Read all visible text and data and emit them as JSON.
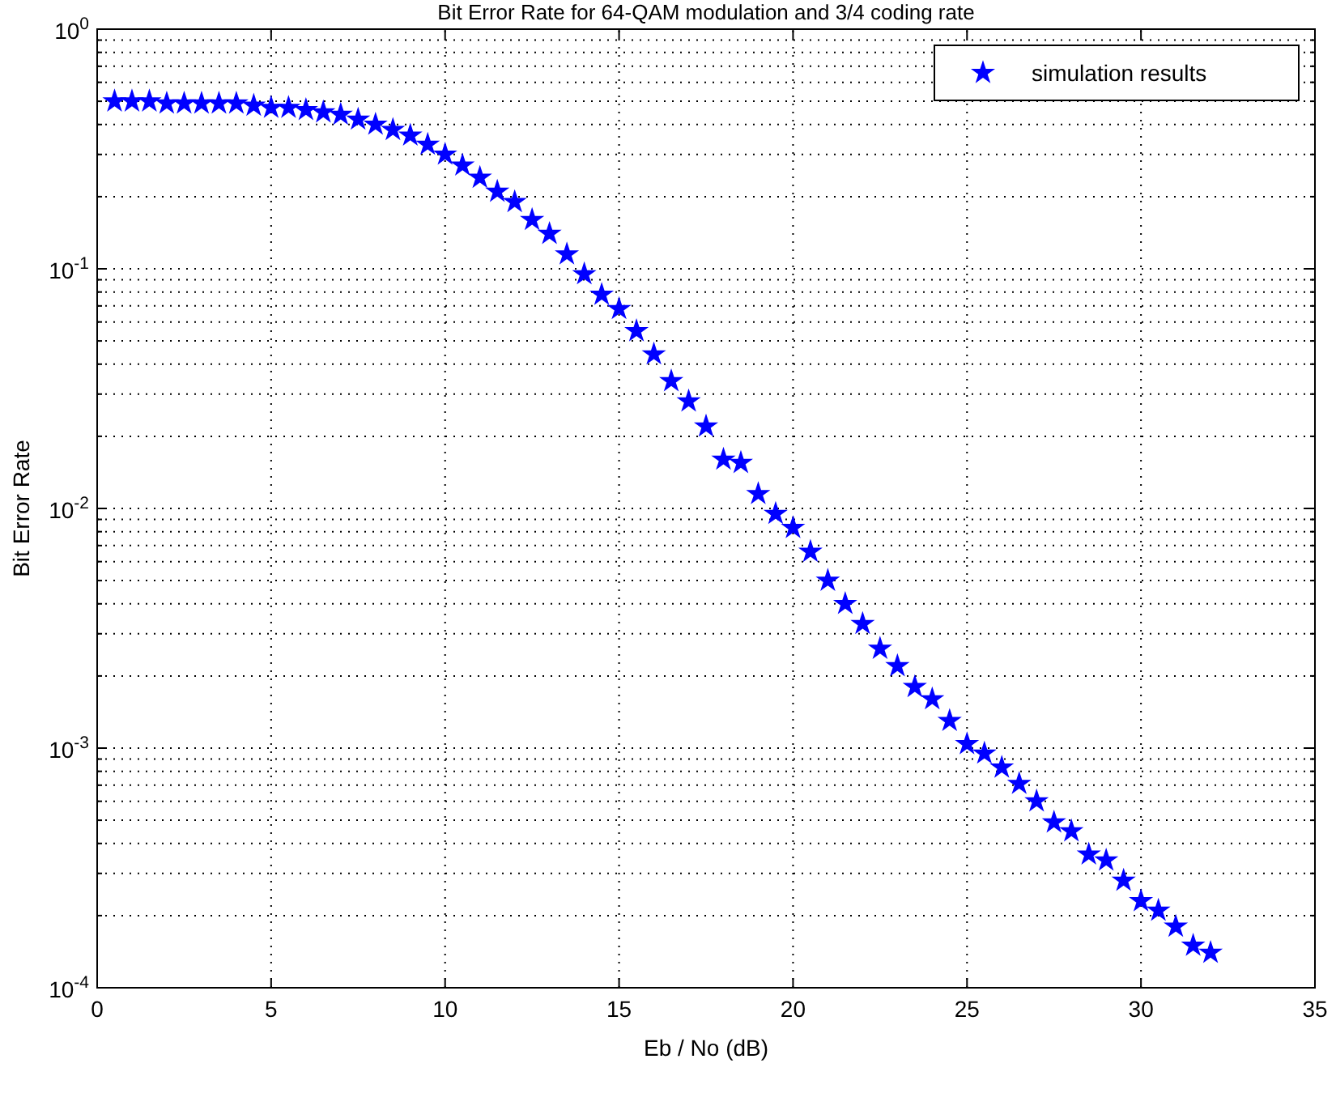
{
  "chart_data": {
    "type": "scatter",
    "title": "Bit Error Rate for 64-QAM modulation and 3/4 coding rate",
    "xlabel": "Eb / No (dB)",
    "ylabel": "Bit Error Rate",
    "log": "y",
    "grid": true,
    "legend": "top right",
    "marker": "star",
    "xlim": [
      0,
      35
    ],
    "xticks": [
      0,
      5,
      10,
      15,
      20,
      25,
      30,
      35
    ],
    "ylim": [
      0.0001,
      1
    ],
    "yticks": [
      {
        "value": 0.0001,
        "label": "10$^{-4}$"
      },
      {
        "value": 0.0002,
        "label": null
      },
      {
        "value": 0.0003,
        "label": null
      },
      {
        "value": 0.0004,
        "label": null
      },
      {
        "value": 0.0005,
        "label": null
      },
      {
        "value": 0.0006,
        "label": null
      },
      {
        "value": 0.0007,
        "label": null
      },
      {
        "value": 0.0008,
        "label": null
      },
      {
        "value": 0.0009,
        "label": null
      },
      {
        "value": 0.001,
        "label": "10$^{-3}$"
      },
      {
        "value": 0.002,
        "label": null
      },
      {
        "value": 0.003,
        "label": null
      },
      {
        "value": 0.004,
        "label": null
      },
      {
        "value": 0.005,
        "label": null
      },
      {
        "value": 0.006,
        "label": null
      },
      {
        "value": 0.007,
        "label": null
      },
      {
        "value": 0.008,
        "label": null
      },
      {
        "value": 0.009,
        "label": null
      },
      {
        "value": 0.01,
        "label": "10$^{-2}$"
      },
      {
        "value": 0.02,
        "label": null
      },
      {
        "value": 0.03,
        "label": null
      },
      {
        "value": 0.04,
        "label": null
      },
      {
        "value": 0.05,
        "label": null
      },
      {
        "value": 0.06,
        "label": null
      },
      {
        "value": 0.07,
        "label": null
      },
      {
        "value": 0.08,
        "label": null
      },
      {
        "value": 0.09,
        "label": null
      },
      {
        "value": 0.1,
        "label": "10$^{-1}$"
      },
      {
        "value": 0.2,
        "label": null
      },
      {
        "value": 0.3,
        "label": null
      },
      {
        "value": 0.4,
        "label": null
      },
      {
        "value": 0.5,
        "label": null
      },
      {
        "value": 0.6,
        "label": null
      },
      {
        "value": 0.7,
        "label": null
      },
      {
        "value": 0.8,
        "label": null
      },
      {
        "value": 0.9,
        "label": null
      },
      {
        "value": 1,
        "label": "10$^{0}$"
      }
    ],
    "x": [
      0.5,
      1,
      1.5,
      2,
      2.5,
      3,
      3.5,
      4,
      4.5,
      5,
      5.5,
      6,
      6.5,
      7,
      7.5,
      8,
      8.5,
      9,
      9.5,
      10,
      10.5,
      11,
      11.5,
      12,
      12.5,
      13,
      13.5,
      14,
      14.5,
      15,
      15.5,
      16,
      16.5,
      17,
      17.5,
      18,
      18.5,
      19,
      19.5,
      20,
      20.5,
      21,
      21.5,
      22,
      22.5,
      23,
      23.5,
      24,
      24.5,
      25,
      25.5,
      26,
      26.5,
      27,
      27.5,
      28,
      28.5,
      29,
      29.5,
      30,
      30.5,
      31,
      31.5,
      32
    ],
    "series": [
      {
        "name": "simulation results",
        "color": "#0000ff",
        "values": [
          0.5,
          0.5,
          0.5,
          0.49,
          0.49,
          0.49,
          0.49,
          0.49,
          0.48,
          0.47,
          0.47,
          0.46,
          0.45,
          0.44,
          0.42,
          0.4,
          0.38,
          0.36,
          0.33,
          0.3,
          0.27,
          0.24,
          0.21,
          0.19,
          0.16,
          0.14,
          0.115,
          0.095,
          0.078,
          0.068,
          0.055,
          0.044,
          0.034,
          0.028,
          0.022,
          0.016,
          0.0155,
          0.0115,
          0.0095,
          0.0083,
          0.0066,
          0.005,
          0.004,
          0.0033,
          0.0026,
          0.0022,
          0.0018,
          0.0016,
          0.0013,
          0.00104,
          0.00095,
          0.00083,
          0.00071,
          0.0006,
          0.00049,
          0.00045,
          0.00036,
          0.00034,
          0.00028,
          0.00023,
          0.00021,
          0.00018,
          0.00015,
          0.00014
        ]
      }
    ]
  }
}
